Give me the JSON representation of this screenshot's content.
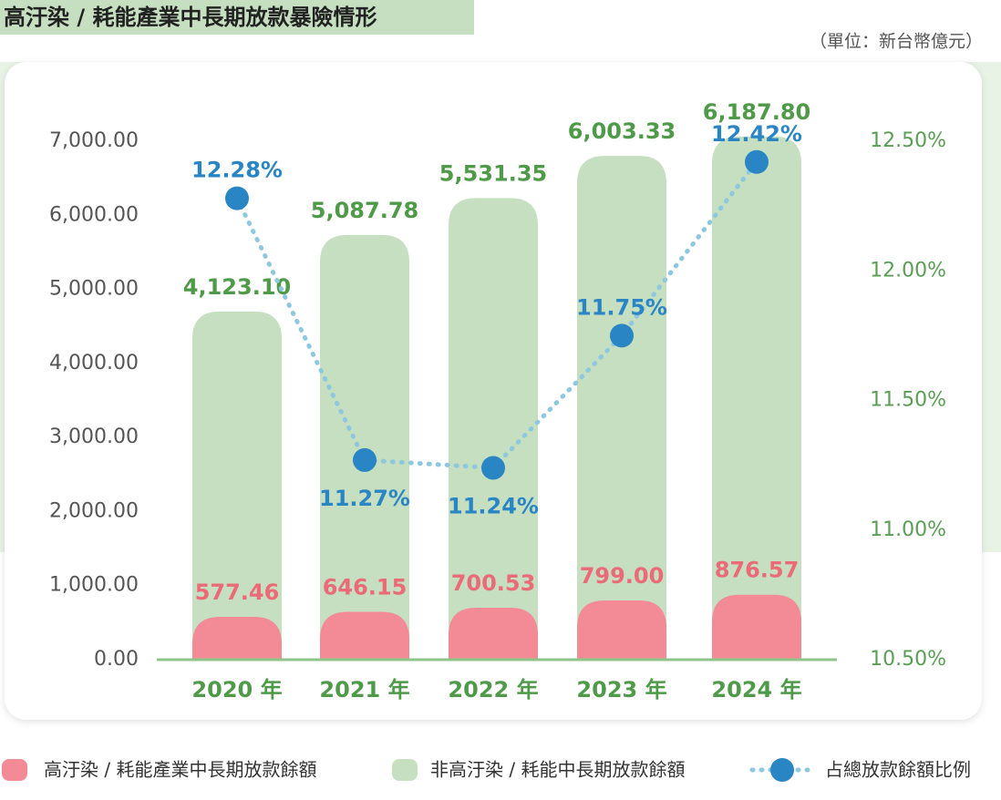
{
  "chart_data": {
    "type": "bar",
    "stacked": true,
    "title": "高汙染 / 耗能產業中長期放款暴險情形",
    "subtitle": "（單位：新台幣億元）",
    "categories": [
      "2020 年",
      "2021 年",
      "2022 年",
      "2023 年",
      "2024 年"
    ],
    "series": [
      {
        "name": "高汙染 / 耗能產業中長期放款餘額",
        "color": "#f28b96",
        "values": [
          577.46,
          646.15,
          700.53,
          799.0,
          876.57
        ],
        "value_labels": [
          "577.46",
          "646.15",
          "700.53",
          "799.00",
          "876.57"
        ]
      },
      {
        "name": "非高汙染 / 耗能中長期放款餘額",
        "color": "#c5dfc0",
        "values": [
          4123.1,
          5087.78,
          5531.35,
          6003.33,
          6187.8
        ],
        "value_labels": [
          "4,123.10",
          "5,087.78",
          "5,531.35",
          "6,003.33",
          "6,187.80"
        ]
      },
      {
        "name": "占總放款餘額比例",
        "type": "line",
        "axis": "y2",
        "color": "#2a85c4",
        "values": [
          12.28,
          11.27,
          11.24,
          11.75,
          12.42
        ],
        "value_labels": [
          "12.28%",
          "11.27%",
          "11.24%",
          "11.75%",
          "12.42%"
        ]
      }
    ],
    "ylim": [
      0,
      7000
    ],
    "yticks": [
      {
        "value": 0,
        "label": "0.00"
      },
      {
        "value": 1000,
        "label": "1,000.00"
      },
      {
        "value": 2000,
        "label": "2,000.00"
      },
      {
        "value": 3000,
        "label": "3,000.00"
      },
      {
        "value": 4000,
        "label": "4,000.00"
      },
      {
        "value": 5000,
        "label": "5,000.00"
      },
      {
        "value": 6000,
        "label": "6,000.00"
      },
      {
        "value": 7000,
        "label": "7,000.00"
      }
    ],
    "y2lim": [
      10.5,
      12.5
    ],
    "y2ticks": [
      {
        "value": 10.5,
        "label": "10.50%"
      },
      {
        "value": 11,
        "label": "11.00%"
      },
      {
        "value": 11.5,
        "label": "11.50%"
      },
      {
        "value": 12,
        "label": "12.00%"
      },
      {
        "value": 12.5,
        "label": "12.50%"
      }
    ],
    "grid": false
  }
}
